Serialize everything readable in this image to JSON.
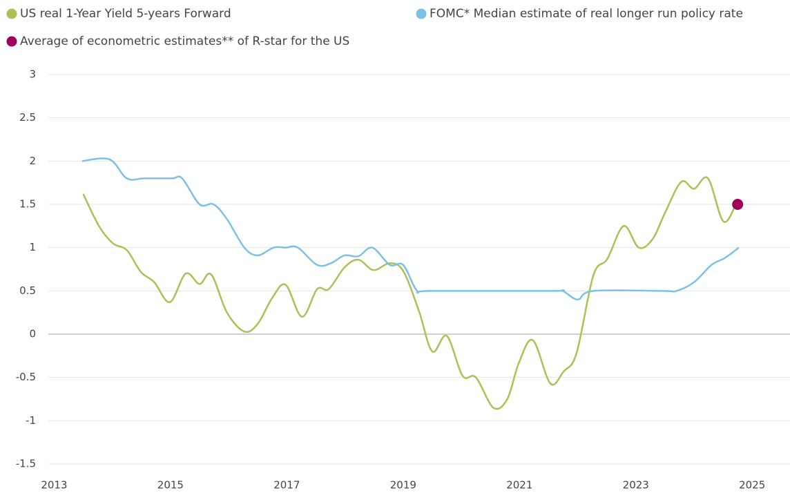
{
  "chart_data": {
    "type": "line",
    "xlim": [
      2012.9,
      2025.65
    ],
    "xticks": [
      2013,
      2015,
      2017,
      2019,
      2021,
      2023,
      2025
    ],
    "ylim": [
      -1.5,
      3
    ],
    "yticks": [
      -1.5,
      -1,
      -0.5,
      0,
      0.5,
      1,
      1.5,
      2,
      2.5,
      3
    ],
    "grid": true,
    "series": [
      {
        "name": "US real 1-Year Yield 5-years Forward",
        "color": "#a8c256",
        "type": "line",
        "x": [
          2013.5,
          2013.77,
          2014.01,
          2014.25,
          2014.49,
          2014.72,
          2014.99,
          2015.26,
          2015.5,
          2015.7,
          2015.97,
          2016.27,
          2016.5,
          2016.75,
          2016.98,
          2017.26,
          2017.52,
          2017.72,
          2017.99,
          2018.23,
          2018.49,
          2018.77,
          2019.0,
          2019.27,
          2019.5,
          2019.75,
          2020.02,
          2020.25,
          2020.55,
          2020.79,
          2020.99,
          2021.23,
          2021.53,
          2021.76,
          2021.98,
          2022.27,
          2022.51,
          2022.79,
          2023.05,
          2023.29,
          2023.5,
          2023.78,
          2024.0,
          2024.24,
          2024.51,
          2024.75
        ],
        "values": [
          1.62,
          1.25,
          1.05,
          0.97,
          0.72,
          0.6,
          0.37,
          0.7,
          0.58,
          0.69,
          0.25,
          0.03,
          0.12,
          0.42,
          0.57,
          0.2,
          0.52,
          0.52,
          0.77,
          0.86,
          0.74,
          0.82,
          0.73,
          0.27,
          -0.2,
          -0.02,
          -0.48,
          -0.5,
          -0.85,
          -0.75,
          -0.33,
          -0.07,
          -0.57,
          -0.43,
          -0.22,
          0.68,
          0.87,
          1.25,
          1.0,
          1.1,
          1.4,
          1.76,
          1.68,
          1.8,
          1.3,
          1.55
        ]
      },
      {
        "name": "FOMC* Median estimate of real longer run policy rate",
        "color": "#7dc0e6",
        "type": "line",
        "x": [
          2013.48,
          2013.95,
          2014.25,
          2014.55,
          2015.02,
          2015.2,
          2015.5,
          2015.74,
          2015.97,
          2016.27,
          2016.5,
          2016.77,
          2016.98,
          2017.19,
          2017.52,
          2017.76,
          2017.99,
          2018.23,
          2018.47,
          2018.77,
          2019.0,
          2019.24,
          2019.47,
          2021.56,
          2021.74,
          2022.0,
          2022.27,
          2023.46,
          2023.7,
          2024.0,
          2024.3,
          2024.53,
          2024.77
        ],
        "values": [
          2.0,
          2.02,
          1.8,
          1.8,
          1.8,
          1.8,
          1.5,
          1.5,
          1.33,
          1.0,
          0.91,
          1.0,
          1.0,
          1.0,
          0.8,
          0.82,
          0.91,
          0.9,
          1.0,
          0.8,
          0.8,
          0.5,
          0.5,
          0.5,
          0.5,
          0.4,
          0.5,
          0.5,
          0.5,
          0.6,
          0.8,
          0.88,
          1.0
        ]
      },
      {
        "name": "Average of econometric estimates** of R-star for the US",
        "color": "#a0005a",
        "type": "scatter",
        "x": [
          2024.75
        ],
        "values": [
          1.5
        ]
      }
    ]
  }
}
